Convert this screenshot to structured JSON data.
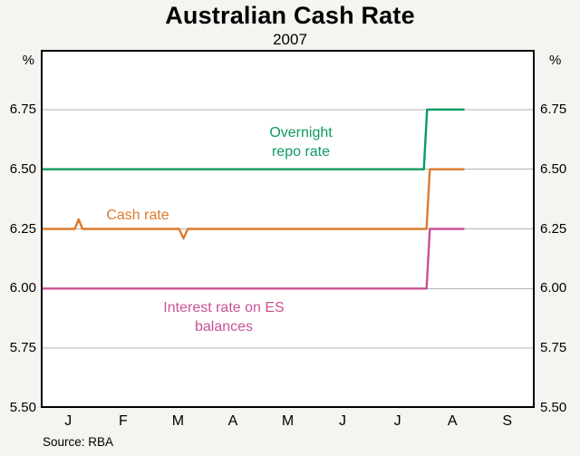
{
  "title": "Australian Cash Rate",
  "subtitle": "2007",
  "source": "Source: RBA",
  "y_axis": {
    "unit": "%",
    "tick_labels": [
      "6.75",
      "6.50",
      "6.25",
      "6.00",
      "5.75",
      "5.50"
    ],
    "tick_values": [
      6.75,
      6.5,
      6.25,
      6.0,
      5.75,
      5.5
    ]
  },
  "x_axis": {
    "month_labels": [
      "J",
      "F",
      "M",
      "A",
      "M",
      "J",
      "J",
      "A",
      "S"
    ]
  },
  "annotations": [
    {
      "text": "Overnight\nrepo rate",
      "color": "#0e9a60"
    },
    {
      "text": "Cash rate",
      "color": "#dc7a2e"
    },
    {
      "text": "Interest rate on ES\nbalances",
      "color": "#c85296"
    }
  ],
  "colors": {
    "overnight_repo_rate": "#0e9a60",
    "cash_rate": "#dc7a2e",
    "es_balances": "#c85296",
    "gridline": "#b3b3b3",
    "background": "#f5f4f0",
    "plot_background": "#ffffff"
  },
  "chart_data": {
    "type": "line",
    "title": "Australian Cash Rate",
    "subtitle": "2007",
    "ylabel": "%",
    "x_unit": "months since 1 Jan 2007",
    "xlim": [
      0,
      9
    ],
    "ylim": [
      5.5,
      7.0
    ],
    "gridlines": [
      5.75,
      6.0,
      6.25,
      6.5,
      6.75
    ],
    "grid": true,
    "legend_position": "inline-annotations",
    "series": [
      {
        "name": "Overnight repo rate",
        "color": "#0e9a60",
        "points": [
          [
            0,
            6.5
          ],
          [
            6.98,
            6.5
          ],
          [
            7.04,
            6.75
          ],
          [
            7.72,
            6.75
          ]
        ]
      },
      {
        "name": "Cash rate",
        "color": "#dc7a2e",
        "points": [
          [
            0,
            6.25
          ],
          [
            0.62,
            6.25
          ],
          [
            0.69,
            6.29
          ],
          [
            0.76,
            6.25
          ],
          [
            2.45,
            6.25
          ],
          [
            2.52,
            6.25
          ],
          [
            2.6,
            6.21
          ],
          [
            2.68,
            6.25
          ],
          [
            7.03,
            6.25
          ],
          [
            7.09,
            6.5
          ],
          [
            7.72,
            6.5
          ]
        ]
      },
      {
        "name": "Interest rate on ES balances",
        "color": "#c85296",
        "points": [
          [
            0,
            6.0
          ],
          [
            7.03,
            6.0
          ],
          [
            7.09,
            6.25
          ],
          [
            7.72,
            6.25
          ]
        ]
      }
    ]
  }
}
